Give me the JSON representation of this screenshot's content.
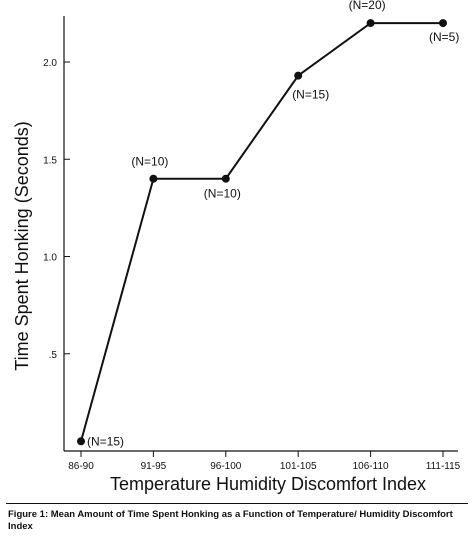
{
  "chart_data": {
    "type": "line",
    "xlabel": "Temperature Humidity Discomfort Index",
    "ylabel": "Time Spent Honking (Seconds)",
    "categories": [
      "86-90",
      "91-95",
      "96-100",
      "101-105",
      "106-110",
      "111-115"
    ],
    "values": [
      0.05,
      1.4,
      1.4,
      1.93,
      2.2,
      2.2
    ],
    "annotations": [
      "(N=15)",
      "(N=10)",
      "(N=10)",
      "(N=15)",
      "(N=20)",
      "(N=5)"
    ],
    "yticks": [
      0.5,
      1.0,
      1.5,
      2.0
    ],
    "ytick_labels": [
      ".5",
      "1.0",
      "1.5",
      "2.0"
    ],
    "ylim": [
      0,
      2.25
    ],
    "grid": false
  },
  "caption": {
    "text": "Figure 1: Mean Amount of Time Spent Honking as a Function of Temperature/ Humidity Discomfort Index"
  }
}
